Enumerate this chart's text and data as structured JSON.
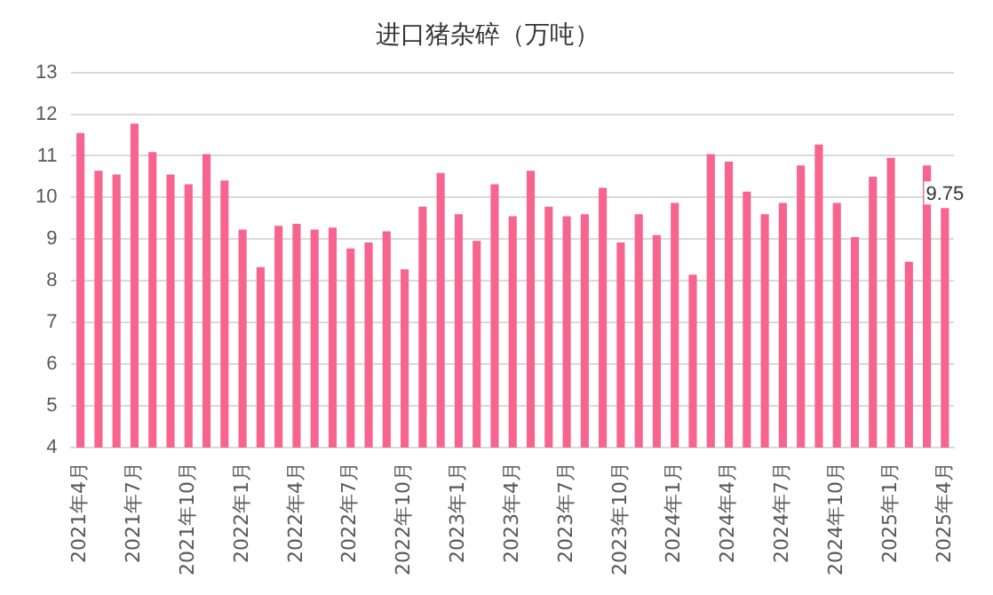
{
  "chart_data": {
    "type": "bar",
    "title": "进口猪杂碎（万吨）",
    "categories": [
      "2021年4月",
      null,
      null,
      "2021年7月",
      null,
      null,
      "2021年10月",
      null,
      null,
      "2022年1月",
      null,
      null,
      "2022年4月",
      null,
      null,
      "2022年7月",
      null,
      null,
      "2022年10月",
      null,
      null,
      "2023年1月",
      null,
      null,
      "2023年4月",
      null,
      null,
      "2023年7月",
      null,
      null,
      "2023年10月",
      null,
      null,
      "2024年1月",
      null,
      null,
      "2024年4月",
      null,
      null,
      "2024年7月",
      null,
      null,
      "2024年10月",
      null,
      null,
      "2025年1月",
      null,
      null,
      "2025年4月"
    ],
    "values": [
      11.55,
      10.64,
      10.55,
      11.77,
      11.09,
      10.55,
      10.32,
      11.04,
      10.41,
      9.23,
      8.33,
      9.32,
      9.37,
      9.23,
      9.28,
      8.78,
      8.92,
      9.19,
      8.28,
      9.78,
      10.59,
      9.6,
      8.96,
      10.32,
      9.55,
      10.64,
      9.78,
      9.55,
      9.6,
      10.23,
      8.92,
      9.6,
      9.1,
      9.87,
      8.15,
      11.04,
      10.86,
      10.14,
      9.6,
      9.87,
      10.77,
      11.27,
      9.87,
      9.05,
      10.5,
      10.95,
      8.46,
      10.77,
      9.75
    ],
    "value_labels": [
      null,
      null,
      null,
      null,
      null,
      null,
      null,
      null,
      null,
      null,
      null,
      null,
      null,
      null,
      null,
      null,
      null,
      null,
      null,
      null,
      null,
      null,
      null,
      null,
      null,
      null,
      null,
      null,
      null,
      null,
      null,
      null,
      null,
      null,
      null,
      null,
      null,
      null,
      null,
      null,
      null,
      null,
      null,
      null,
      null,
      null,
      null,
      null,
      "9.75"
    ],
    "color": "#f7648f",
    "ylim": [
      4,
      13
    ],
    "yticks": [
      4,
      5,
      6,
      7,
      8,
      9,
      10,
      11,
      12,
      13
    ],
    "grid": "y",
    "legend": false
  }
}
